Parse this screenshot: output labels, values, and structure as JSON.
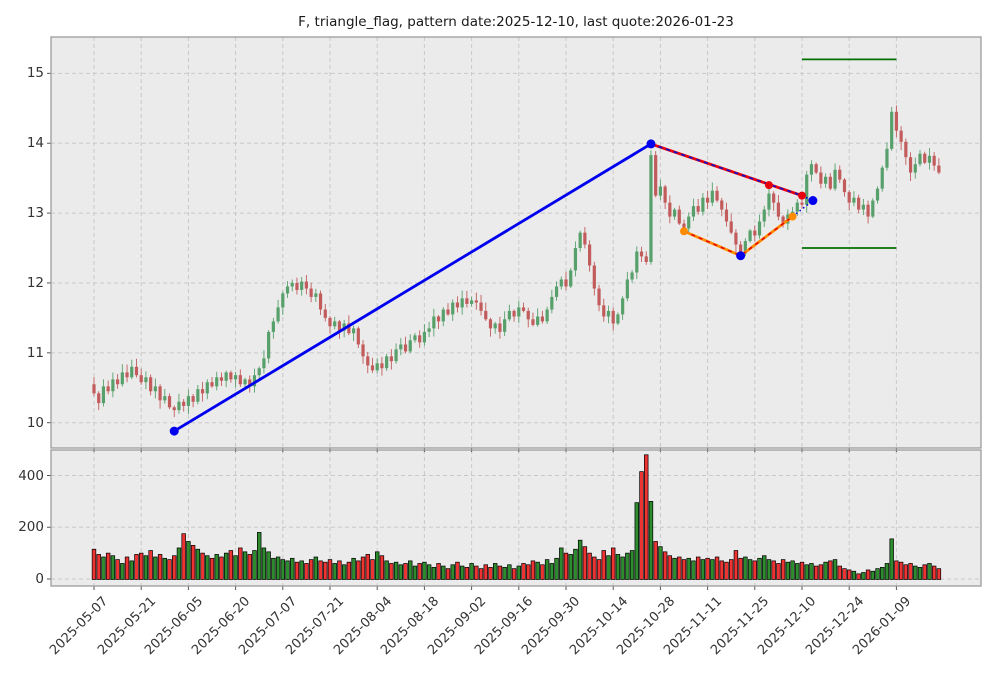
{
  "title": "F, triangle_flag, pattern date:2025-12-10, last quote:2026-01-23",
  "chart_data": {
    "type": "candlestick+volume",
    "symbol": "F",
    "pattern": "triangle_flag",
    "pattern_date": "2025-12-10",
    "last_quote": "2026-01-23",
    "legend_position": "none",
    "grid": "dashed",
    "price_yticks": [
      10,
      11,
      12,
      13,
      14,
      15
    ],
    "price_ylim": [
      9.6,
      15.5
    ],
    "volume_yticks": [
      0,
      200,
      400
    ],
    "volume_ylim": [
      -27,
      498
    ],
    "x_tick_indices": [
      0,
      10,
      20,
      30,
      40,
      50,
      60,
      70,
      80,
      90,
      100,
      110,
      120,
      130,
      140,
      150,
      160,
      170
    ],
    "x_tick_labels": [
      "2025-05-07",
      "2025-05-21",
      "2025-06-05",
      "2025-06-20",
      "2025-07-07",
      "2025-07-21",
      "2025-08-04",
      "2025-08-18",
      "2025-09-02",
      "2025-09-16",
      "2025-09-30",
      "2025-10-14",
      "2025-10-28",
      "2025-11-11",
      "2025-11-25",
      "2025-12-10",
      "2025-12-24",
      "2026-01-09"
    ],
    "open_first": 10.55,
    "closes": [
      10.42,
      10.28,
      10.52,
      10.45,
      10.62,
      10.55,
      10.72,
      10.65,
      10.8,
      10.68,
      10.58,
      10.65,
      10.45,
      10.52,
      10.32,
      10.38,
      10.22,
      10.18,
      10.3,
      10.24,
      10.38,
      10.3,
      10.48,
      10.42,
      10.58,
      10.52,
      10.65,
      10.6,
      10.72,
      10.62,
      10.68,
      10.55,
      10.62,
      10.52,
      10.68,
      10.78,
      10.92,
      11.3,
      11.45,
      11.65,
      11.85,
      11.95,
      12.0,
      11.9,
      12.02,
      11.92,
      11.8,
      11.85,
      11.62,
      11.5,
      11.38,
      11.45,
      11.32,
      11.42,
      11.28,
      11.35,
      11.12,
      10.95,
      10.82,
      10.75,
      10.85,
      10.78,
      10.95,
      10.88,
      11.05,
      11.12,
      11.02,
      11.18,
      11.25,
      11.15,
      11.3,
      11.35,
      11.52,
      11.45,
      11.62,
      11.55,
      11.72,
      11.65,
      11.78,
      11.7,
      11.75,
      11.72,
      11.6,
      11.48,
      11.35,
      11.42,
      11.3,
      11.48,
      11.6,
      11.52,
      11.65,
      11.6,
      11.48,
      11.4,
      11.52,
      11.45,
      11.62,
      11.8,
      11.95,
      12.05,
      11.95,
      12.18,
      12.5,
      12.72,
      12.55,
      12.25,
      11.92,
      11.68,
      11.52,
      11.6,
      11.42,
      11.55,
      11.78,
      12.05,
      12.15,
      12.45,
      12.38,
      12.3,
      13.83,
      13.25,
      13.38,
      13.15,
      12.95,
      13.05,
      12.85,
      12.78,
      12.95,
      13.1,
      13.02,
      13.22,
      13.15,
      13.32,
      13.18,
      13.05,
      12.88,
      12.72,
      12.55,
      12.42,
      12.6,
      12.75,
      12.68,
      12.88,
      13.05,
      13.28,
      13.15,
      12.95,
      12.85,
      12.98,
      13.02,
      13.15,
      13.12,
      13.55,
      13.7,
      13.58,
      13.42,
      13.52,
      13.35,
      13.62,
      13.48,
      13.3,
      13.15,
      13.22,
      13.05,
      13.12,
      12.95,
      13.18,
      13.35,
      13.65,
      13.92,
      14.45,
      14.18,
      14.02,
      13.8,
      13.58,
      13.7,
      13.85,
      13.72,
      13.82,
      13.68,
      13.58
    ],
    "volumes": [
      115,
      95,
      85,
      100,
      90,
      75,
      60,
      85,
      70,
      95,
      100,
      90,
      110,
      85,
      95,
      80,
      75,
      90,
      120,
      175,
      145,
      130,
      115,
      100,
      90,
      80,
      95,
      85,
      100,
      110,
      90,
      120,
      105,
      95,
      110,
      180,
      120,
      105,
      80,
      85,
      75,
      70,
      80,
      65,
      70,
      60,
      75,
      85,
      70,
      65,
      75,
      60,
      70,
      55,
      65,
      80,
      70,
      85,
      95,
      75,
      105,
      90,
      70,
      60,
      65,
      55,
      60,
      70,
      50,
      60,
      65,
      55,
      45,
      60,
      50,
      40,
      55,
      65,
      50,
      45,
      60,
      50,
      40,
      55,
      45,
      60,
      50,
      45,
      55,
      40,
      50,
      60,
      55,
      70,
      65,
      55,
      75,
      60,
      80,
      120,
      100,
      95,
      115,
      150,
      125,
      100,
      85,
      75,
      110,
      90,
      120,
      95,
      85,
      100,
      110,
      295,
      415,
      480,
      300,
      145,
      125,
      105,
      90,
      80,
      85,
      75,
      80,
      70,
      85,
      75,
      80,
      75,
      85,
      70,
      65,
      75,
      110,
      80,
      85,
      75,
      70,
      80,
      90,
      75,
      70,
      60,
      75,
      65,
      70,
      60,
      65,
      55,
      60,
      50,
      55,
      65,
      70,
      75,
      50,
      40,
      35,
      30,
      20,
      25,
      35,
      30,
      40,
      45,
      60,
      155,
      70,
      65,
      55,
      60,
      50,
      45,
      55,
      60,
      50,
      40
    ],
    "wick_overrides": {
      "17": {
        "l": 10.08
      },
      "118": {
        "h": 13.9
      },
      "164": {
        "l": 12.85
      },
      "169": {
        "h": 14.52
      },
      "173": {
        "l": 13.46
      }
    },
    "overlays": {
      "trend_line": {
        "color": "#0000ee",
        "points": [
          [
            17,
            9.88
          ],
          [
            118,
            13.99
          ]
        ],
        "markers": [
          [
            17,
            9.88
          ],
          [
            118,
            13.99
          ]
        ]
      },
      "upper_line": {
        "color": "#e8000b",
        "dash_color": "#1111cc",
        "points": [
          [
            118,
            13.99
          ],
          [
            150,
            13.25
          ]
        ],
        "markers": [
          [
            143,
            13.4
          ],
          [
            150,
            13.25
          ]
        ]
      },
      "lower_line": {
        "color": "#ff8c00",
        "dash_color": "#e8000b",
        "points": [
          [
            125,
            12.74
          ],
          [
            137,
            12.39
          ],
          [
            148,
            12.95
          ]
        ],
        "markers": [
          [
            125,
            12.74
          ],
          [
            148,
            12.95
          ]
        ],
        "blue_marker": [
          137,
          12.39
        ]
      },
      "apex": {
        "color": "#0000ee",
        "point": [
          152.3,
          13.18
        ],
        "dotted_from": [
          [
            150,
            13.25
          ],
          [
            148,
            12.95
          ]
        ]
      },
      "levels": [
        {
          "value": 15.2,
          "from": 150,
          "to": 170,
          "color": "#007000"
        },
        {
          "value": 12.5,
          "from": 150,
          "to": 170,
          "color": "#007000"
        }
      ]
    },
    "colors": {
      "up": "#57a06b",
      "down": "#c25b5b",
      "vol_up": "#2d8c2d",
      "vol_down": "#ee3333",
      "vol_edge": "#000000",
      "background": "#ebebeb",
      "grid": "#c9c9c9",
      "spine": "#9b9b9b",
      "tick_text": "#333333",
      "marker_blue": "#0000ee",
      "marker_red": "#e8000b",
      "marker_orange": "#ff8c00"
    }
  }
}
